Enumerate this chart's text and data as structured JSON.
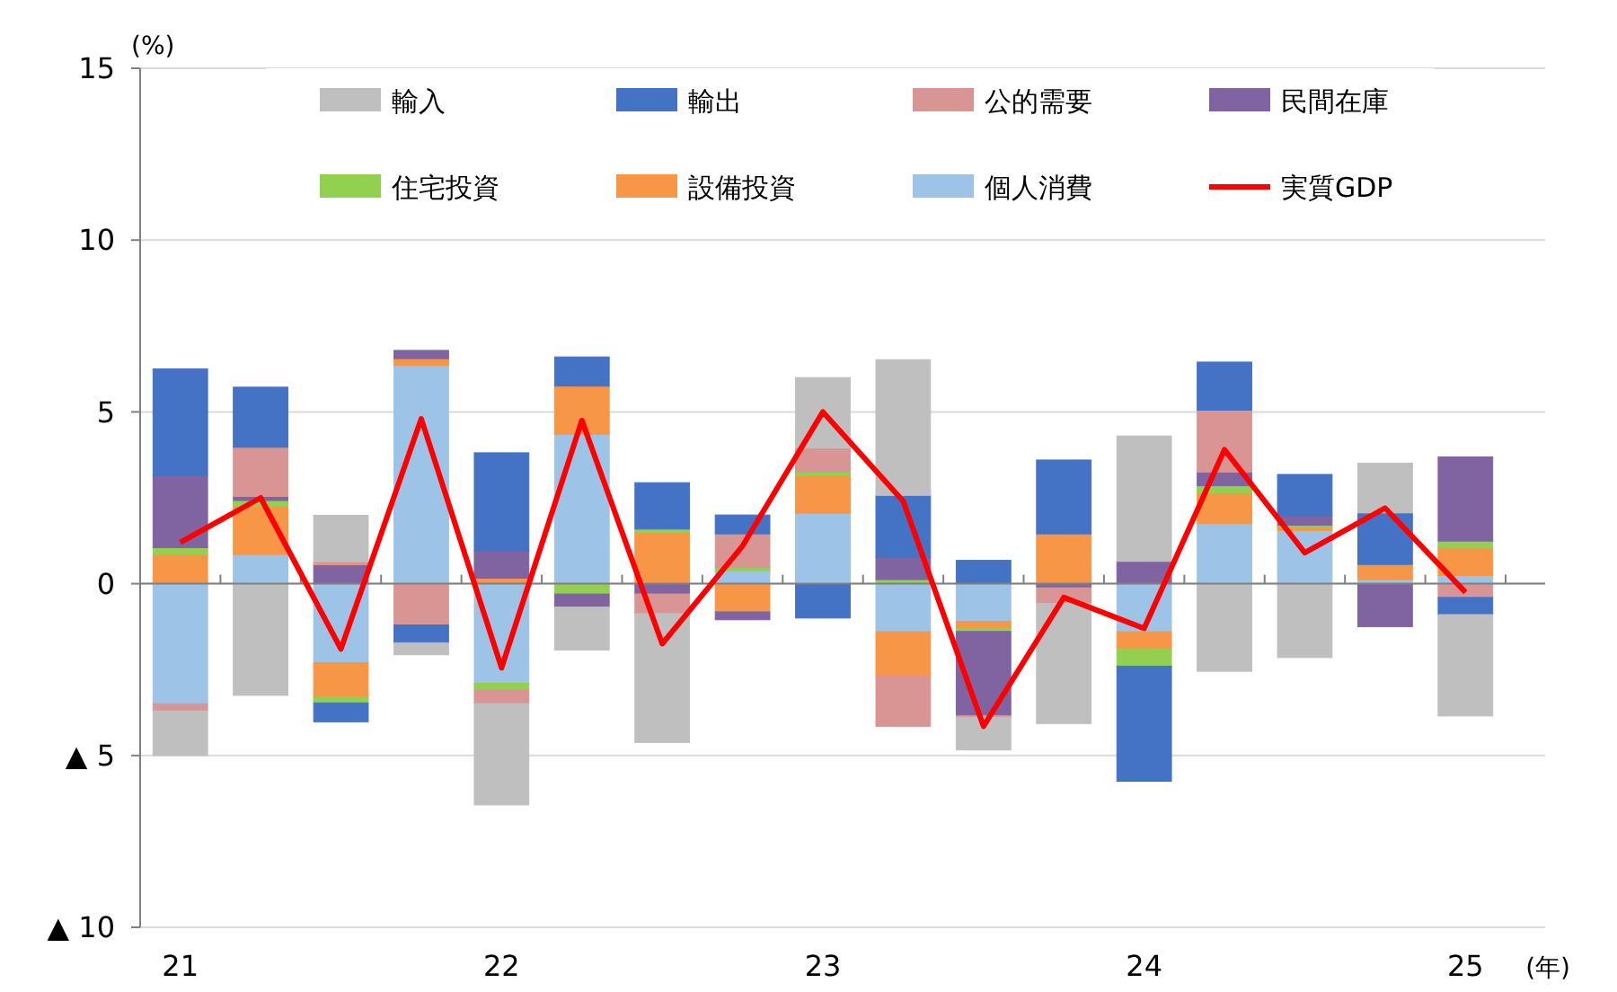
{
  "chart_data": {
    "type": "bar",
    "stacked": true,
    "ylabel": "(%)",
    "xlabel": "(年)",
    "categories": [
      "21",
      null,
      null,
      null,
      "22",
      null,
      null,
      null,
      "23",
      null,
      null,
      null,
      "24",
      null,
      null,
      null,
      "25"
    ],
    "ylim": [
      -10,
      15
    ],
    "yticks": [
      15,
      10,
      5,
      0,
      {
        "value": -5,
        "label": "▲ 5"
      },
      {
        "value": -10,
        "label": "▲ 10"
      }
    ],
    "grid": "y",
    "legend": "top",
    "series": [
      {
        "name": "個人消費",
        "color": "#9dc3e6",
        "values": [
          -3.5,
          0.85,
          -2.3,
          6.35,
          -2.9,
          4.35,
          0,
          0.38,
          2.05,
          -1.4,
          -1.1,
          0,
          -1.4,
          1.75,
          1.55,
          0.12,
          0.24
        ]
      },
      {
        "name": "設備投資",
        "color": "#f79646",
        "values": [
          0.85,
          1.4,
          -1.0,
          0.2,
          0.16,
          1.4,
          1.5,
          -0.82,
          1.1,
          -1.3,
          -0.2,
          1.45,
          -0.5,
          0.9,
          0.1,
          0.44,
          0.8
        ]
      },
      {
        "name": "住宅投資",
        "color": "#92d050",
        "values": [
          0.2,
          0.17,
          -0.17,
          0,
          -0.19,
          -0.3,
          0.09,
          0.09,
          0.1,
          0.12,
          -0.09,
          0,
          -0.5,
          0.2,
          0.05,
          0,
          0.2
        ]
      },
      {
        "name": "民間在庫",
        "color": "#8064a2",
        "values": [
          2.1,
          0.12,
          0.55,
          0.24,
          0.8,
          -0.38,
          -0.3,
          -0.23,
          0,
          0.65,
          -2.45,
          -0.12,
          0.65,
          0.4,
          0.28,
          -1.25,
          2.45
        ]
      },
      {
        "name": "公的需要",
        "color": "#d99594",
        "values": [
          -0.2,
          1.43,
          0.09,
          -1.2,
          -0.4,
          0,
          -0.57,
          0.98,
          0.7,
          -1.45,
          -0.05,
          -0.45,
          0,
          1.8,
          0,
          0,
          -0.4
        ]
      },
      {
        "name": "輸出",
        "color": "#4472c4",
        "values": [
          3.1,
          1.75,
          -0.55,
          -0.52,
          2.85,
          0.85,
          1.35,
          0.55,
          -1.0,
          1.8,
          0.68,
          2.15,
          -3.35,
          1.4,
          1.2,
          1.5,
          -0.5
        ]
      },
      {
        "name": "輸入",
        "color": "#bfbfbf",
        "values": [
          -1.3,
          -3.25,
          1.35,
          -0.35,
          -2.95,
          -1.25,
          -3.75,
          0,
          2.05,
          3.95,
          -0.95,
          -3.5,
          3.65,
          -2.55,
          -2.15,
          1.45,
          -2.95
        ]
      },
      {
        "name": "実質GDP",
        "type": "line",
        "color": "#ff0000",
        "marker": "none",
        "values": [
          1.2,
          2.5,
          -1.9,
          4.8,
          -2.45,
          4.75,
          -1.75,
          1.1,
          5.0,
          2.4,
          -4.15,
          -0.4,
          -1.3,
          3.9,
          0.9,
          2.2,
          -0.25
        ]
      }
    ]
  }
}
